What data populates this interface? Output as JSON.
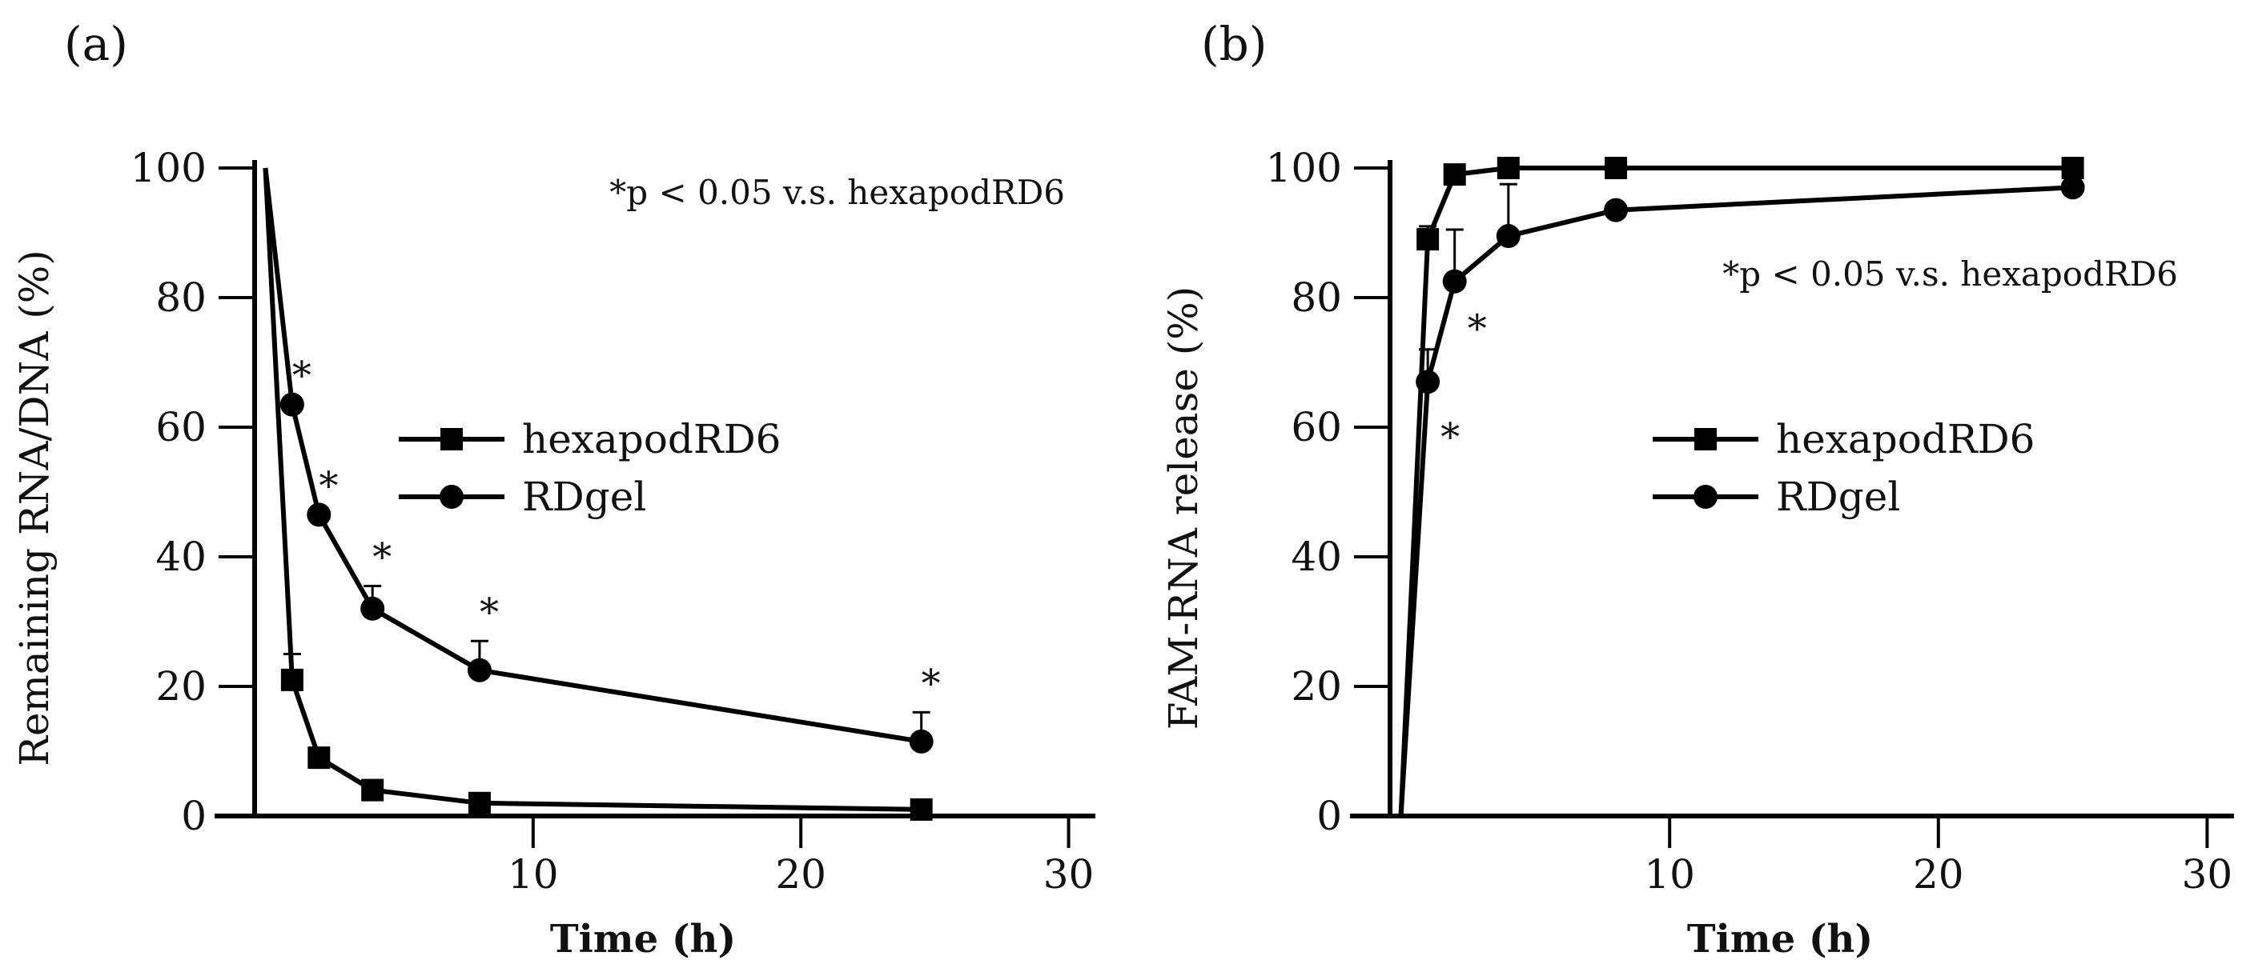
{
  "chart_data": [
    {
      "panel_label": "(a)",
      "type": "line",
      "ylabel": "Remaining RNA/DNA (%)",
      "xlabel": "Time (h)",
      "xlim": [
        -1,
        31
      ],
      "ylim": [
        0,
        100
      ],
      "xticks": [
        10,
        20,
        30
      ],
      "yticks": [
        0,
        20,
        40,
        60,
        80,
        100
      ],
      "note": "*p < 0.05 v.s. hexapodRD6",
      "legend": {
        "position": "center",
        "entries": [
          "hexapodRD6",
          "RDgel"
        ]
      },
      "series": [
        {
          "name": "hexapodRD6",
          "marker": "square",
          "x": [
            0,
            1,
            2,
            4,
            8,
            24.5
          ],
          "y": [
            100,
            21,
            9,
            4,
            2,
            1
          ],
          "error": [
            0,
            4,
            0,
            0,
            0,
            0
          ],
          "significance": []
        },
        {
          "name": "RDgel",
          "marker": "circle",
          "x": [
            0,
            1,
            2,
            4,
            8,
            24.5
          ],
          "y": [
            100,
            63.5,
            46.5,
            32,
            22.5,
            11.5
          ],
          "error": [
            0,
            0,
            0,
            3.5,
            4.5,
            4.5
          ],
          "significance": [
            "",
            "*",
            "*",
            "*",
            "*",
            "*"
          ]
        }
      ]
    },
    {
      "panel_label": "(b)",
      "type": "line",
      "ylabel": "FAM-RNA release (%)",
      "xlabel": "Time (h)",
      "xlim": [
        -1,
        31
      ],
      "ylim": [
        0,
        100
      ],
      "xticks": [
        10,
        20,
        30
      ],
      "yticks": [
        0,
        20,
        40,
        60,
        80,
        100
      ],
      "note": "*p < 0.05 v.s. hexapodRD6",
      "legend": {
        "position": "center-right",
        "entries": [
          "hexapodRD6",
          "RDgel"
        ]
      },
      "series": [
        {
          "name": "hexapodRD6",
          "marker": "square",
          "x": [
            0,
            1,
            2,
            4,
            8,
            25
          ],
          "y": [
            0,
            89,
            99,
            100,
            100,
            100
          ],
          "error": [
            0,
            2,
            0,
            0,
            0,
            0
          ],
          "significance": []
        },
        {
          "name": "RDgel",
          "marker": "circle",
          "x": [
            0,
            1,
            2,
            4,
            8,
            25
          ],
          "y": [
            0,
            67,
            82.5,
            89.5,
            93.5,
            97
          ],
          "error": [
            0,
            5,
            8,
            8,
            0,
            0
          ],
          "significance": [
            "",
            "*",
            "*",
            "",
            "",
            ""
          ]
        }
      ]
    }
  ]
}
